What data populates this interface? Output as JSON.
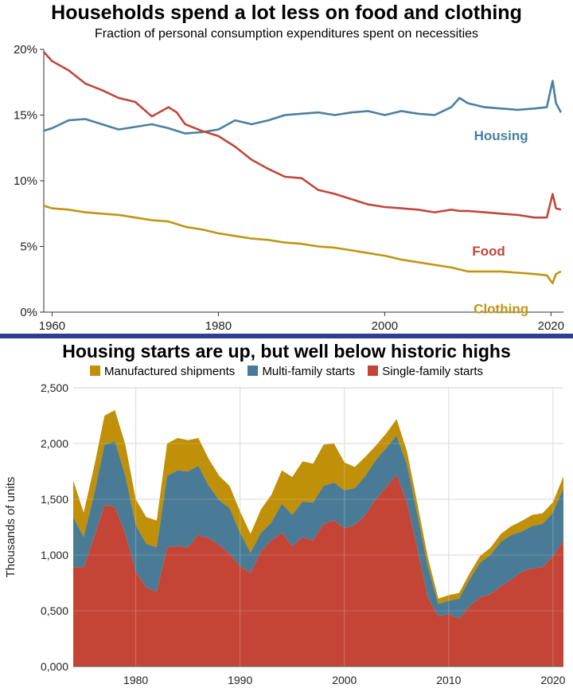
{
  "colors": {
    "housing": "#4a7fa0",
    "food": "#c0473b",
    "clothing": "#c09512",
    "manufactured": "#bf9008",
    "multi": "#4a7b96",
    "single": "#c44536",
    "divider": "#2e3f8f"
  },
  "top_chart": {
    "title": "Households spend a lot less on food and clothing",
    "subtitle": "Fraction of personal consumption expenditures spent on necessities",
    "y_ticks": [
      "20%",
      "15%",
      "10%",
      "5%",
      "0%"
    ],
    "x_ticks": [
      "1960",
      "1980",
      "2000",
      "2020"
    ],
    "series_labels": {
      "housing": "Housing",
      "food": "Food",
      "clothing": "Clothing"
    }
  },
  "bottom_chart": {
    "title": "Housing starts are up, but well below historic highs",
    "legend": [
      "Manufactured shipments",
      "Multi-family starts",
      "Single-family starts"
    ],
    "y_label": "Thousands of units",
    "y_ticks": [
      "2,500",
      "2,000",
      "1,500",
      "1,000",
      "0,500",
      "0,000"
    ],
    "x_ticks": [
      "1980",
      "1990",
      "2000",
      "2010",
      "2020"
    ]
  },
  "chart_data": [
    {
      "type": "line",
      "title": "Households spend a lot less on food and clothing",
      "subtitle": "Fraction of personal consumption expenditures spent on necessities",
      "xlabel": "",
      "ylabel": "",
      "xlim": [
        1959,
        2021.5
      ],
      "ylim": [
        0,
        20
      ],
      "y_unit": "%",
      "grid": false,
      "series": [
        {
          "name": "Housing",
          "x": [
            1959,
            1960,
            1962,
            1964,
            1966,
            1968,
            1970,
            1972,
            1974,
            1976,
            1978,
            1980,
            1982,
            1984,
            1986,
            1988,
            1990,
            1992,
            1994,
            1996,
            1998,
            2000,
            2002,
            2004,
            2006,
            2008,
            2009,
            2010,
            2012,
            2014,
            2016,
            2018,
            2019.5,
            2020.2,
            2020.6,
            2021.2
          ],
          "y": [
            13.8,
            14.0,
            14.6,
            14.7,
            14.3,
            13.9,
            14.1,
            14.3,
            14.0,
            13.6,
            13.7,
            13.9,
            14.6,
            14.3,
            14.6,
            15.0,
            15.1,
            15.2,
            15.0,
            15.2,
            15.3,
            15.0,
            15.3,
            15.1,
            15.0,
            15.6,
            16.3,
            15.9,
            15.6,
            15.5,
            15.4,
            15.5,
            15.6,
            17.6,
            15.9,
            15.2
          ]
        },
        {
          "name": "Food",
          "x": [
            1959,
            1960,
            1962,
            1964,
            1966,
            1968,
            1970,
            1972,
            1974,
            1975,
            1976,
            1978,
            1980,
            1982,
            1984,
            1986,
            1988,
            1990,
            1992,
            1994,
            1996,
            1998,
            2000,
            2002,
            2004,
            2006,
            2008,
            2009,
            2010,
            2012,
            2014,
            2016,
            2018,
            2019.5,
            2020.2,
            2020.6,
            2021.2
          ],
          "y": [
            19.8,
            19.1,
            18.4,
            17.4,
            16.9,
            16.3,
            16.0,
            14.9,
            15.6,
            15.2,
            14.3,
            13.8,
            13.4,
            12.6,
            11.6,
            10.9,
            10.3,
            10.2,
            9.3,
            9.0,
            8.6,
            8.2,
            8.0,
            7.9,
            7.8,
            7.6,
            7.8,
            7.7,
            7.7,
            7.6,
            7.5,
            7.4,
            7.2,
            7.2,
            9.0,
            7.9,
            7.8
          ]
        },
        {
          "name": "Clothing",
          "x": [
            1959,
            1960,
            1962,
            1964,
            1966,
            1968,
            1970,
            1972,
            1974,
            1976,
            1978,
            1980,
            1982,
            1984,
            1986,
            1988,
            1990,
            1992,
            1994,
            1996,
            1998,
            2000,
            2002,
            2004,
            2006,
            2008,
            2010,
            2012,
            2014,
            2016,
            2018,
            2019.5,
            2020.2,
            2020.6,
            2021.2
          ],
          "y": [
            8.1,
            7.9,
            7.8,
            7.6,
            7.5,
            7.4,
            7.2,
            7.0,
            6.9,
            6.5,
            6.3,
            6.0,
            5.8,
            5.6,
            5.5,
            5.3,
            5.2,
            5.0,
            4.9,
            4.7,
            4.5,
            4.3,
            4.0,
            3.8,
            3.6,
            3.4,
            3.1,
            3.1,
            3.1,
            3.0,
            2.9,
            2.8,
            2.2,
            2.9,
            3.1
          ]
        }
      ]
    },
    {
      "type": "area",
      "stacked": true,
      "title": "Housing starts are up, but well below historic highs",
      "xlabel": "",
      "ylabel": "Thousands of units",
      "xlim": [
        1974,
        2021
      ],
      "ylim": [
        0,
        2500
      ],
      "grid": true,
      "legend_position": "top",
      "x": [
        1974,
        1975,
        1976,
        1977,
        1978,
        1979,
        1980,
        1981,
        1982,
        1983,
        1984,
        1985,
        1986,
        1987,
        1988,
        1989,
        1990,
        1991,
        1992,
        1993,
        1994,
        1995,
        1996,
        1997,
        1998,
        1999,
        2000,
        2001,
        2002,
        2003,
        2004,
        2005,
        2006,
        2007,
        2008,
        2009,
        2010,
        2011,
        2012,
        2013,
        2014,
        2015,
        2016,
        2017,
        2018,
        2019,
        2020,
        2021
      ],
      "series": [
        {
          "name": "Single-family starts",
          "values": [
            890,
            890,
            1160,
            1450,
            1430,
            1190,
            850,
            710,
            670,
            1070,
            1080,
            1070,
            1180,
            1150,
            1090,
            1010,
            900,
            840,
            1030,
            1130,
            1200,
            1080,
            1160,
            1130,
            1280,
            1310,
            1240,
            1270,
            1360,
            1500,
            1610,
            1720,
            1470,
            1050,
            620,
            450,
            470,
            430,
            540,
            620,
            650,
            720,
            780,
            850,
            880,
            890,
            990,
            1130
          ]
        },
        {
          "name": "Multi-family starts",
          "values": [
            450,
            270,
            380,
            540,
            590,
            520,
            420,
            390,
            400,
            640,
            680,
            680,
            620,
            470,
            400,
            410,
            300,
            180,
            170,
            160,
            260,
            280,
            320,
            340,
            340,
            340,
            340,
            330,
            350,
            350,
            350,
            350,
            340,
            310,
            280,
            110,
            120,
            180,
            240,
            310,
            350,
            400,
            400,
            360,
            380,
            390,
            390,
            470
          ]
        },
        {
          "name": "Manufactured shipments",
          "values": [
            330,
            220,
            250,
            260,
            280,
            280,
            230,
            240,
            240,
            290,
            290,
            280,
            250,
            240,
            220,
            200,
            190,
            170,
            210,
            250,
            300,
            340,
            360,
            350,
            370,
            350,
            250,
            190,
            170,
            130,
            130,
            150,
            120,
            100,
            80,
            50,
            50,
            50,
            55,
            60,
            65,
            70,
            80,
            95,
            100,
            95,
            95,
            105
          ]
        }
      ]
    }
  ]
}
